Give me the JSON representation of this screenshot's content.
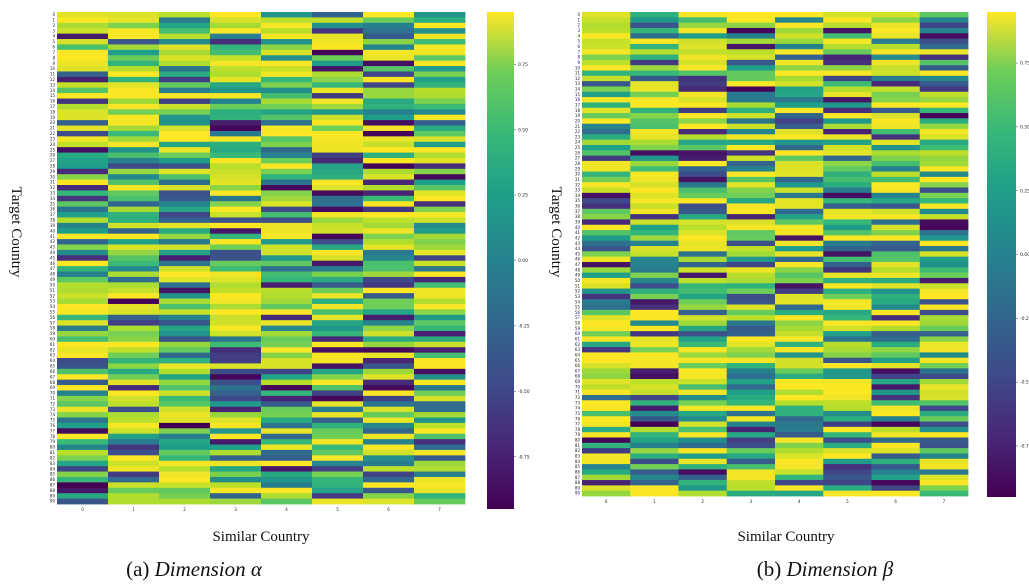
{
  "colors": {
    "colormap": "viridis",
    "background": "#ffffff",
    "text": "#111111"
  },
  "chart_data": [
    {
      "type": "heatmap",
      "xlabel": "Similar Country",
      "ylabel": "Target Country",
      "x_ticks": [
        "0",
        "1",
        "2",
        "3",
        "4",
        "5",
        "6",
        "7"
      ],
      "y_ticks": [
        "0",
        "1",
        "2",
        "3",
        "4",
        "5",
        "6",
        "7",
        "8",
        "9",
        "10",
        "11",
        "12",
        "13",
        "14",
        "15",
        "16",
        "17",
        "18",
        "19",
        "20",
        "21",
        "22",
        "23",
        "24",
        "25",
        "26",
        "27",
        "28",
        "29",
        "30",
        "31",
        "32",
        "33",
        "34",
        "35",
        "36",
        "37",
        "38",
        "39",
        "40",
        "41",
        "42",
        "43",
        "44",
        "45",
        "46",
        "47",
        "48",
        "49",
        "50",
        "51",
        "52",
        "53",
        "54",
        "55",
        "56",
        "57",
        "58",
        "59",
        "60",
        "61",
        "62",
        "63",
        "64",
        "65",
        "66",
        "67",
        "68",
        "69",
        "70",
        "71",
        "72",
        "73",
        "74",
        "75",
        "76",
        "77",
        "78",
        "79",
        "80",
        "81",
        "82",
        "83",
        "84",
        "85",
        "86",
        "87",
        "88",
        "89",
        "90"
      ],
      "colorbar_ticks": [
        "0.75",
        "0.50",
        "0.25",
        "0.00",
        "-0.25",
        "-0.50",
        "-0.75"
      ],
      "colorbar_range": [
        -0.95,
        0.95
      ],
      "caption_prefix": "(a) ",
      "caption_name": "Dimension  α",
      "value_seed": 11
    },
    {
      "type": "heatmap",
      "xlabel": "Similar Country",
      "ylabel": "Target Country",
      "x_ticks": [
        "0",
        "1",
        "2",
        "3",
        "4",
        "5",
        "6",
        "7"
      ],
      "y_ticks": [
        "0",
        "1",
        "2",
        "3",
        "4",
        "5",
        "6",
        "7",
        "8",
        "9",
        "10",
        "11",
        "12",
        "13",
        "14",
        "15",
        "16",
        "17",
        "18",
        "19",
        "20",
        "21",
        "22",
        "23",
        "24",
        "25",
        "26",
        "27",
        "28",
        "29",
        "30",
        "31",
        "32",
        "33",
        "34",
        "35",
        "36",
        "37",
        "38",
        "39",
        "40",
        "41",
        "42",
        "43",
        "44",
        "45",
        "46",
        "47",
        "48",
        "49",
        "50",
        "51",
        "52",
        "53",
        "54",
        "55",
        "56",
        "57",
        "58",
        "59",
        "60",
        "61",
        "62",
        "63",
        "64",
        "65",
        "66",
        "67",
        "68",
        "69",
        "70",
        "71",
        "72",
        "73",
        "74",
        "75",
        "76",
        "77",
        "78",
        "79",
        "80",
        "81",
        "82",
        "83",
        "84",
        "85",
        "86",
        "87",
        "88",
        "89",
        "90"
      ],
      "colorbar_ticks": [
        "0.75",
        "0.50",
        "0.25",
        "0.00",
        "-0.25",
        "-0.50",
        "-0.75"
      ],
      "colorbar_range": [
        -0.95,
        0.95
      ],
      "caption_prefix": "(b) ",
      "caption_name": "Dimension  β",
      "value_seed": 37
    }
  ]
}
